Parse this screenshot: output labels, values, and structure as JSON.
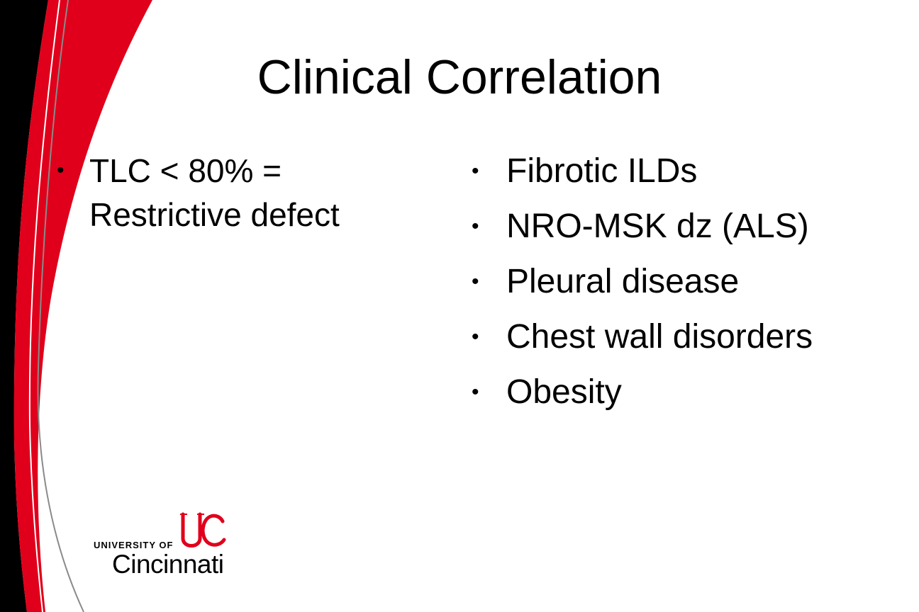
{
  "slide": {
    "title": "Clinical Correlation",
    "left_bullets": [
      {
        "text": "TLC < 80% = Restrictive defect"
      }
    ],
    "right_bullets": [
      {
        "text": "Fibrotic ILDs"
      },
      {
        "text": "NRO-MSK dz (ALS)"
      },
      {
        "text": "Pleural disease"
      },
      {
        "text": "Chest wall disorders"
      },
      {
        "text": "Obesity"
      }
    ],
    "bullet_glyph": "•"
  },
  "logo": {
    "line1": "UNIVERSITY OF",
    "line2": "Cincinnati",
    "mark_icon": "uc-monogram-icon"
  },
  "colors": {
    "accent_red": "#e0001b",
    "dark": "#000000",
    "background": "#ffffff"
  }
}
